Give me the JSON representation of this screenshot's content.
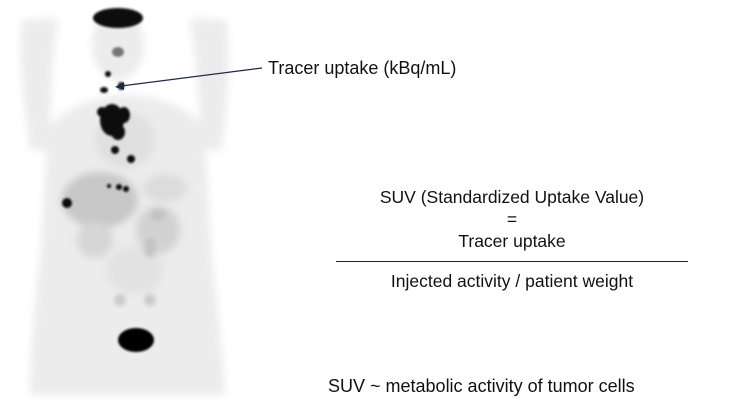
{
  "image": {
    "description_icon": "pet-scan-whole-body-icon"
  },
  "annotation": {
    "tracer_label": "Tracer uptake (kBq/mL)"
  },
  "formula": {
    "title": "SUV (Standardized Uptake Value)",
    "equals": "=",
    "numerator": "Tracer uptake",
    "denominator": "Injected activity / patient weight"
  },
  "summary": "SUV ~ metabolic activity of tumor cells",
  "colors": {
    "text": "#111111",
    "scan_tissue": "#d9d9d9",
    "scan_hot": "#000000"
  }
}
